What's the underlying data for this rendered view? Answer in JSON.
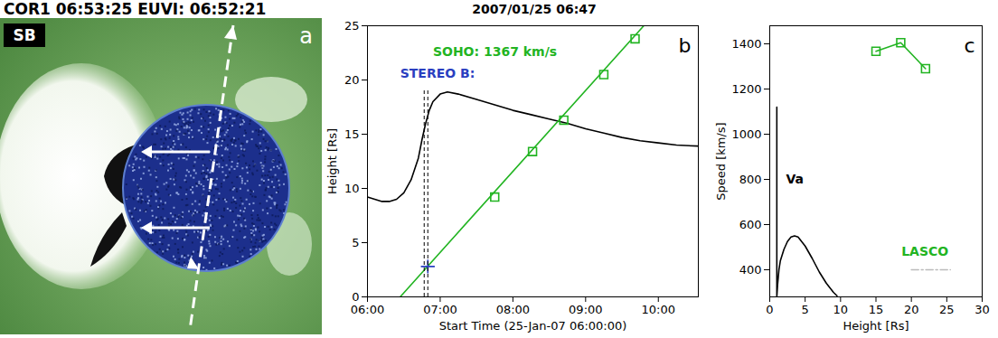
{
  "image_panel": {
    "title": "COR1 06:53:25 EUVI: 06:52:21",
    "tag": "SB",
    "letter": "a"
  },
  "chart_data": [
    {
      "type": "line",
      "panel": "b",
      "title": "2007/01/25 06:47",
      "xlabel": "Start Time (25-Jan-07 06:00:00)",
      "ylabel": "Height [Rs]",
      "xlim": [
        6,
        10.55
      ],
      "xticks": [
        {
          "value": 6,
          "label": "06:00"
        },
        {
          "value": 7,
          "label": "07:00"
        },
        {
          "value": 8,
          "label": "08:00"
        },
        {
          "value": 9,
          "label": "09:00"
        },
        {
          "value": 10,
          "label": "10:00"
        }
      ],
      "ylim": [
        0,
        25
      ],
      "yticks": [
        0,
        5,
        10,
        15,
        20,
        25
      ],
      "series": [
        {
          "type": "line",
          "color": "#000000",
          "line_style": "solid",
          "x": [
            6.0,
            6.1,
            6.2,
            6.3,
            6.4,
            6.5,
            6.6,
            6.7,
            6.75,
            6.8,
            6.85,
            6.9,
            7.0,
            7.1,
            7.25,
            7.5,
            7.75,
            8.0,
            8.25,
            8.5,
            8.75,
            9.0,
            9.25,
            9.5,
            9.75,
            10.0,
            10.25,
            10.55
          ],
          "values": [
            9.2,
            9.0,
            8.8,
            8.8,
            9.0,
            9.6,
            10.8,
            12.8,
            14.5,
            16.0,
            17.2,
            18.0,
            18.7,
            18.9,
            18.7,
            18.2,
            17.7,
            17.2,
            16.8,
            16.4,
            16.0,
            15.5,
            15.1,
            14.7,
            14.4,
            14.2,
            14.0,
            13.9
          ]
        },
        {
          "type": "line",
          "color": "#22b422",
          "line_style": "solid",
          "x": [
            6.45,
            9.8
          ],
          "values": [
            0,
            25
          ]
        },
        {
          "type": "scatter",
          "color": "#22b422",
          "marker": "square",
          "x": [
            7.75,
            8.27,
            8.7,
            9.25,
            9.68
          ],
          "values": [
            9.2,
            13.4,
            16.3,
            20.5,
            23.8
          ]
        },
        {
          "type": "scatter",
          "color": "#2a3fc0",
          "marker": "plus",
          "x": [
            6.83
          ],
          "values": [
            2.8
          ]
        }
      ],
      "vlines": {
        "x": [
          6.78,
          6.83
        ],
        "y": [
          0,
          19
        ]
      },
      "annotations": [
        {
          "text": "SOHO: 1367 km/s",
          "x": 6.9,
          "y": 22.6,
          "color": "#22b422"
        },
        {
          "text": "STEREO B:",
          "x": 6.45,
          "y": 20.6,
          "color": "#2a3fc0"
        }
      ]
    },
    {
      "type": "line",
      "panel": "c",
      "xlabel": "Height [Rs]",
      "ylabel": "Speed [km/s]",
      "xlim": [
        0,
        30
      ],
      "xticks": [
        0,
        5,
        10,
        15,
        20,
        25,
        30
      ],
      "ylim": [
        280,
        1480
      ],
      "yticks": [
        400,
        600,
        800,
        1000,
        1200,
        1400
      ],
      "series": [
        {
          "type": "line",
          "color": "#000000",
          "line_style": "solid",
          "x": [
            1.0,
            1.0,
            1.1,
            1.3,
            1.5,
            2.0,
            2.5,
            3.0,
            3.5,
            4.0,
            5.0,
            6.0,
            7.0,
            8.0,
            9.0,
            9.5
          ],
          "values": [
            1120,
            280,
            330,
            400,
            440,
            490,
            525,
            545,
            550,
            545,
            505,
            450,
            390,
            340,
            300,
            285
          ]
        },
        {
          "type": "line",
          "color": "#22b422",
          "line_style": "solid",
          "marker": "square",
          "x": [
            15,
            18.5,
            22
          ],
          "values": [
            1367,
            1405,
            1290
          ]
        },
        {
          "type": "line",
          "color": "#bbbbbb",
          "line_style": "dashdot",
          "x": [
            20,
            25.5
          ],
          "values": [
            400,
            400
          ]
        }
      ],
      "annotations": [
        {
          "text": "Va",
          "x": 2.3,
          "y": 800,
          "color": "#000000"
        },
        {
          "text": "LASCO",
          "x": 18.6,
          "y": 480,
          "color": "#22b422"
        }
      ]
    }
  ]
}
